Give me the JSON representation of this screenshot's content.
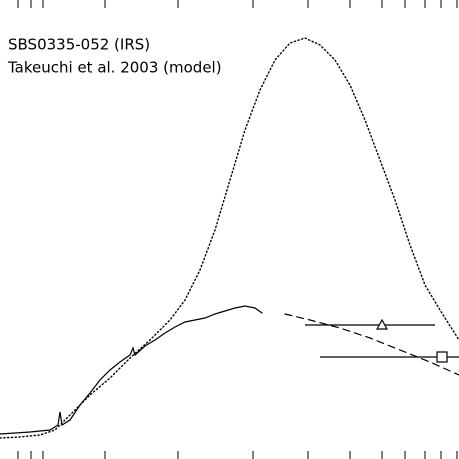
{
  "chart_data": {
    "type": "line",
    "xlim": [
      0,
      459
    ],
    "ylim": [
      0,
      459
    ],
    "xticks": [
      18,
      31,
      43,
      105,
      178,
      253,
      308,
      350,
      382,
      405,
      425,
      441,
      457
    ],
    "series": [
      {
        "name": "SBS0335-052 (IRS)",
        "style": "solid",
        "color": "#000000",
        "x": [
          0,
          30,
          50,
          58,
          60,
          62,
          70,
          80,
          90,
          100,
          110,
          120,
          130,
          133,
          135,
          145,
          155,
          165,
          175,
          185,
          195,
          205,
          215,
          225,
          235,
          245,
          255,
          262
        ],
        "values": [
          25,
          27,
          29,
          34,
          47,
          34,
          39,
          54,
          66,
          79,
          89,
          97,
          104,
          111,
          104,
          113,
          119,
          126,
          132,
          137,
          139,
          141,
          145,
          148,
          151,
          153,
          151,
          146
        ]
      },
      {
        "name": "Takeuchi et al. 2003 (model)",
        "style": "dotted",
        "color": "#000000",
        "x": [
          0,
          20,
          40,
          55,
          70,
          90,
          110,
          130,
          150,
          170,
          185,
          200,
          215,
          230,
          245,
          260,
          275,
          290,
          305,
          320,
          335,
          350,
          365,
          380,
          395,
          410,
          425,
          440,
          459
        ],
        "values": [
          21,
          22,
          24,
          29,
          44,
          64,
          81,
          101,
          119,
          139,
          159,
          189,
          229,
          279,
          329,
          369,
          399,
          416,
          421,
          414,
          399,
          374,
          339,
          299,
          259,
          214,
          174,
          149,
          119
        ]
      },
      {
        "style": "dashed",
        "color": "#000000",
        "x": [
          285,
          310,
          340,
          370,
          400,
          430,
          459
        ],
        "values": [
          145,
          139,
          131,
          121,
          109,
          97,
          84
        ]
      },
      {
        "type": "errorbar",
        "marker": "triangle",
        "color": "#000000",
        "x": [
          382
        ],
        "values": [
          134
        ],
        "xmin": [
          305
        ],
        "xmax": [
          435
        ]
      },
      {
        "type": "errorbar",
        "marker": "square",
        "color": "#000000",
        "x": [
          442
        ],
        "values": [
          102
        ],
        "xmin": [
          320
        ],
        "xmax": [
          459
        ]
      }
    ]
  }
}
